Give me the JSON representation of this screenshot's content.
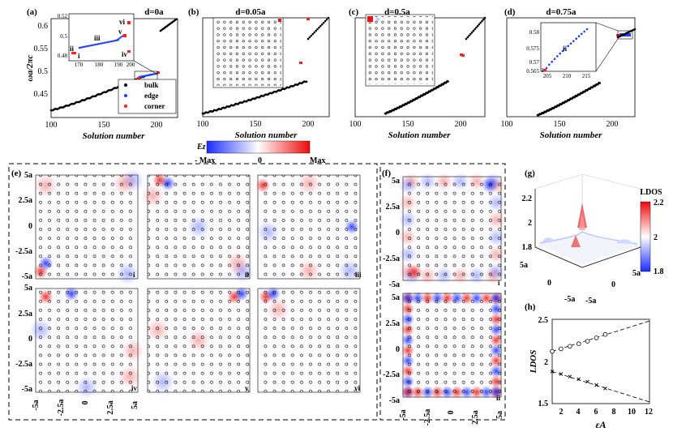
{
  "colors": {
    "bulk": "#000000",
    "edge": "#1f3fff",
    "corner": "#ff2020",
    "neg": "#2233ff",
    "pos": "#ee1111"
  },
  "panel_a": {
    "label": "(a)",
    "title": "d=0a",
    "ylabel": "ωa/2πc",
    "xlabel": "Solution number",
    "yticks": [
      "0.6",
      "0.55",
      "0.5",
      "0.45"
    ],
    "xticks": [
      "100",
      "150",
      "200"
    ],
    "inset_yticks": [
      "0.52",
      "0.5",
      "0.48"
    ],
    "inset_xticks": [
      "170",
      "180",
      "190",
      "200"
    ],
    "inset_marks": [
      "vi",
      "v",
      "iv",
      "iii",
      "ii",
      "i"
    ],
    "legend": [
      "bulk",
      "edge",
      "corner"
    ]
  },
  "panel_b": {
    "label": "(b)",
    "title": "d=0.05a",
    "xlabel": "Solution number",
    "xticks": [
      "100",
      "150",
      "200"
    ]
  },
  "panel_c": {
    "label": "(c)",
    "title": "d=0.5a",
    "xlabel": "Solution number",
    "xticks": [
      "100",
      "150",
      "200"
    ]
  },
  "panel_d": {
    "label": "(d)",
    "title": "d=0.75a",
    "xlabel": "Solution number",
    "xticks": [
      "100",
      "150",
      "200"
    ],
    "inset_yticks": [
      "0.58",
      "0.575",
      "0.57",
      "0.565"
    ],
    "inset_xticks": [
      "205",
      "210",
      "215"
    ],
    "inset_mark": "ii",
    "inset_mark_i": "i"
  },
  "colorbar": {
    "label": "Ez",
    "min": "- Max",
    "mid": "0",
    "max": "Max"
  },
  "panel_e": {
    "label": "(e)",
    "yticks": [
      "5a",
      "2.5a",
      "0",
      "-2.5a",
      "-5a"
    ],
    "xticks": [
      "-5a",
      "-2.5a",
      "0",
      "2.5a",
      "5a"
    ],
    "mode_labels": [
      "i",
      "ii",
      "iii",
      "iv",
      "v",
      "vi"
    ]
  },
  "panel_f": {
    "label": "(f)",
    "yticks": [
      "5a",
      "2.5a",
      "0",
      "-2.5a",
      "-5a"
    ],
    "xticks": [
      "-5a",
      "-2.5a",
      "0",
      "2.5a",
      "5a"
    ],
    "mode_labels": [
      "i",
      "ii"
    ]
  },
  "panel_g": {
    "label": "(g)",
    "zticks": [
      "2.2",
      "2",
      "1.8"
    ],
    "axis_ticks": [
      "5a",
      "0",
      "-5a",
      "-5a",
      "0",
      "5a"
    ],
    "cbar_title": "LDOS",
    "cbar_ticks": [
      "2.2",
      "2",
      "1.8"
    ]
  },
  "panel_h": {
    "label": "(h)",
    "ylabel": "LDOS",
    "xlabel": "εA",
    "yticks": [
      "2.5",
      "2",
      "1.5"
    ],
    "xticks": [
      "2",
      "4",
      "6",
      "8",
      "10",
      "12"
    ]
  },
  "chart_data": [
    {
      "type": "scatter",
      "panel": "h",
      "xlabel": "εA",
      "ylabel": "LDOS",
      "xlim": [
        1,
        12
      ],
      "ylim": [
        1.5,
        2.5
      ],
      "series": [
        {
          "marker": "circle",
          "x": [
            1,
            2,
            3,
            4,
            5,
            6,
            7
          ],
          "values": [
            2.12,
            2.15,
            2.18,
            2.21,
            2.24,
            2.28,
            2.32
          ]
        },
        {
          "marker": "cross",
          "x": [
            1,
            2,
            3,
            4,
            5,
            6,
            7
          ],
          "values": [
            1.88,
            1.85,
            1.82,
            1.79,
            1.76,
            1.72,
            1.68
          ]
        }
      ],
      "fit_lines": [
        {
          "x": [
            1,
            12
          ],
          "values": [
            2.12,
            2.48
          ]
        },
        {
          "x": [
            1,
            12
          ],
          "values": [
            1.88,
            1.52
          ]
        }
      ]
    },
    {
      "type": "scatter",
      "panel": "a",
      "xlabel": "Solution number",
      "ylabel": "ωa/2πc",
      "xlim": [
        100,
        220
      ],
      "ylim": [
        0.41,
        0.625
      ],
      "series": [
        {
          "name": "bulk",
          "x": [
            100,
            110,
            120,
            130,
            140,
            150,
            160,
            165,
            200,
            205,
            210,
            215,
            220
          ],
          "values": [
            0.418,
            0.423,
            0.428,
            0.436,
            0.443,
            0.452,
            0.462,
            0.47,
            0.595,
            0.598,
            0.603,
            0.607,
            0.61
          ]
        },
        {
          "name": "edge",
          "x": [
            168,
            172,
            176,
            180,
            184,
            188,
            192
          ],
          "values": [
            0.484,
            0.486,
            0.488,
            0.49,
            0.492,
            0.494,
            0.496
          ]
        },
        {
          "name": "corner",
          "x": [
            166,
            167,
            196,
            197,
            198,
            199
          ],
          "values": [
            0.481,
            0.481,
            0.51,
            0.51,
            0.514,
            0.514
          ]
        }
      ]
    }
  ]
}
